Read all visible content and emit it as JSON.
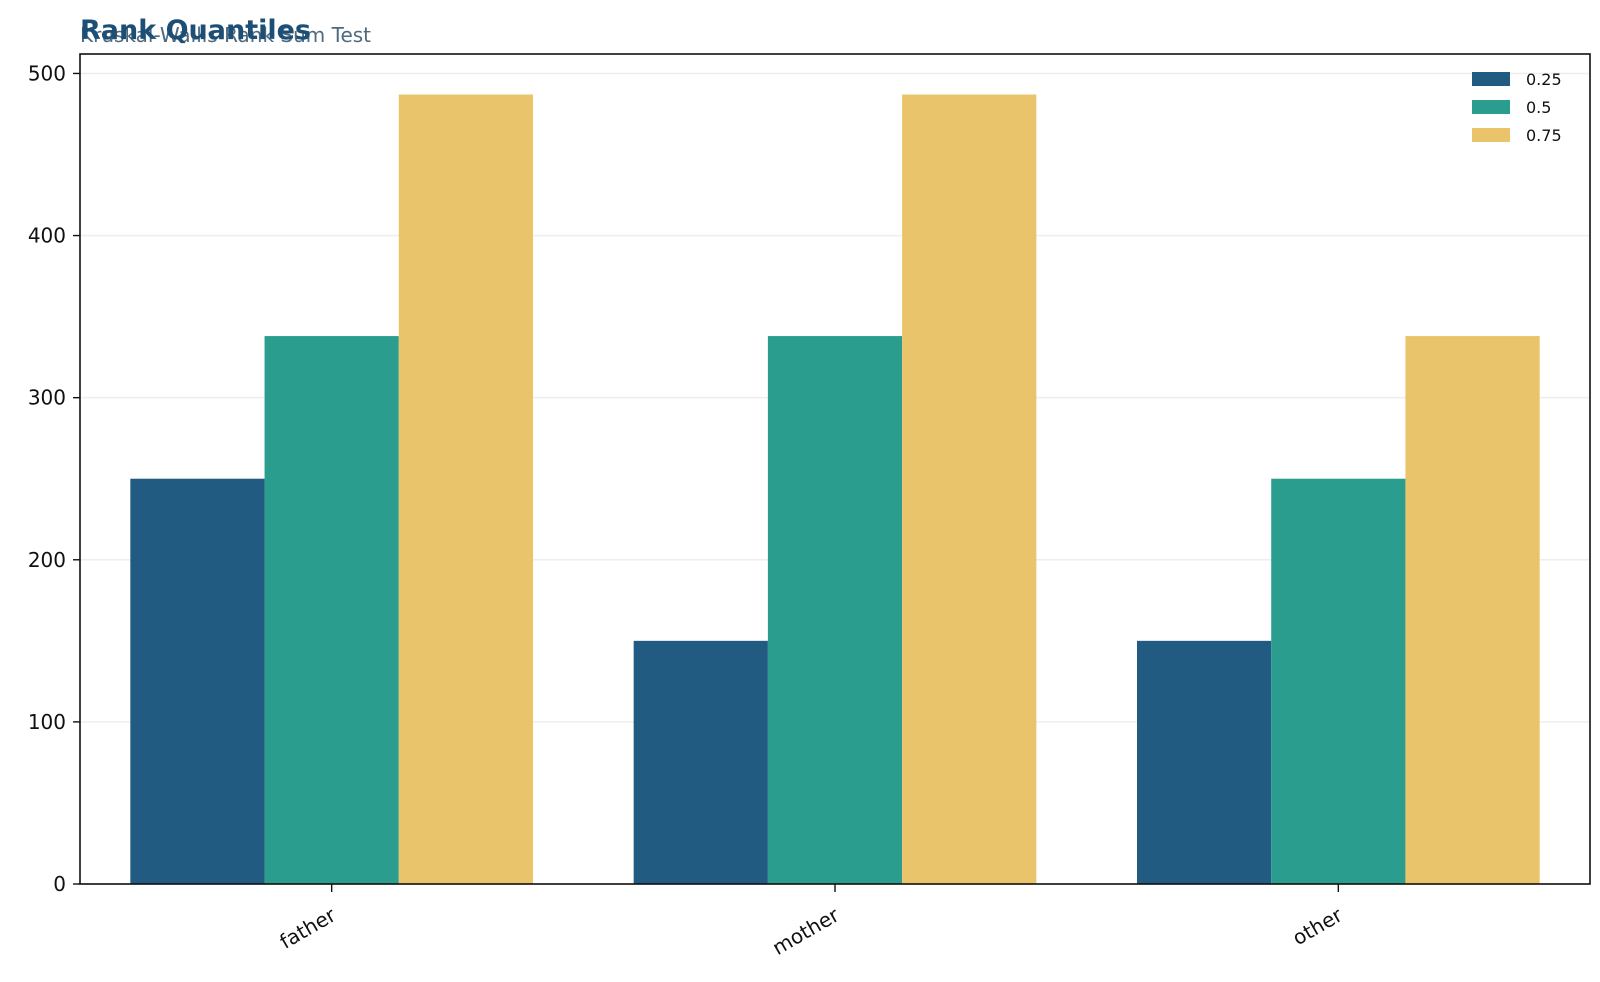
{
  "chart_data": {
    "type": "bar",
    "title": "Rank Quantiles",
    "subtitle": "Kruskal-Wallis Rank Sum Test",
    "xlabel": "",
    "ylabel": "",
    "categories": [
      "father",
      "mother",
      "other"
    ],
    "series": [
      {
        "name": "0.25",
        "values": [
          250,
          150,
          150
        ]
      },
      {
        "name": "0.5",
        "values": [
          338,
          338,
          250
        ]
      },
      {
        "name": "0.75",
        "values": [
          487,
          487,
          338
        ]
      }
    ],
    "ylim": [
      0,
      512
    ],
    "yticks": [
      0,
      100,
      200,
      300,
      400,
      500
    ],
    "grid": "horizontal",
    "legend_position": "top-right",
    "colors": {
      "series": [
        "#215b81",
        "#2a9d8f",
        "#e9c46a"
      ],
      "title": "#1d4e75",
      "subtitle": "#4f6a80",
      "axis": "#111111",
      "grid": "#eeeeee"
    }
  }
}
